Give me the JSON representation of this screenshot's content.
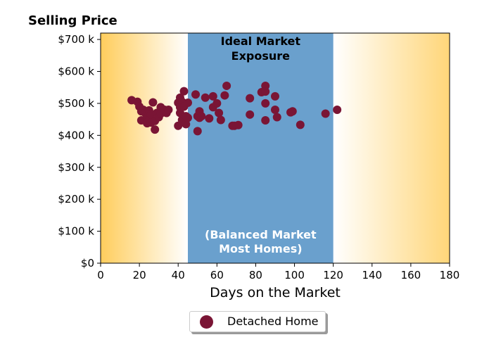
{
  "chart_data": {
    "type": "scatter",
    "title": "Selling Price",
    "xlabel": "Days on the Market",
    "ylabel": "",
    "xlim": [
      0,
      180
    ],
    "ylim": [
      0,
      720000
    ],
    "x_ticks": [
      0,
      20,
      40,
      60,
      80,
      100,
      120,
      140,
      160,
      180
    ],
    "y_ticks": [
      0,
      100000,
      200000,
      300000,
      400000,
      500000,
      600000,
      700000
    ],
    "y_tick_labels": [
      "$0",
      "$100 k",
      "$200 k",
      "$300 k",
      "$400 k",
      "$500 k",
      "$600 k",
      "$700 k"
    ],
    "grid": false,
    "legend_placement": "bottom-center",
    "highlight_band": {
      "x_range": [
        45,
        120
      ],
      "color": "#6aa0cd",
      "top_label_line1": "Ideal Market",
      "top_label_line2": "Exposure",
      "bottom_label_line1": "(Balanced Market",
      "bottom_label_line2": "Most Homes)"
    },
    "background_gradient_color": "#ffcd5c",
    "series": [
      {
        "name": "Detached Home",
        "color": "#7a1535",
        "x": [
          16,
          19,
          20,
          21,
          21,
          22,
          23,
          24,
          24,
          25,
          25,
          26,
          26,
          27,
          28,
          28,
          29,
          30,
          31,
          31,
          33,
          34,
          35,
          40,
          40,
          41,
          41,
          41,
          42,
          42,
          43,
          43,
          44,
          44,
          45,
          45,
          49,
          50,
          50,
          51,
          51,
          52,
          54,
          56,
          58,
          58,
          60,
          61,
          62,
          64,
          65,
          68,
          69,
          71,
          77,
          77,
          83,
          85,
          85,
          85,
          85,
          90,
          90,
          91,
          98,
          99,
          103,
          116,
          122
        ],
        "y": [
          510000,
          505000,
          490000,
          475000,
          447000,
          480000,
          470000,
          455000,
          438000,
          478000,
          448000,
          465000,
          440000,
          503000,
          445000,
          418000,
          470000,
          457000,
          488000,
          468000,
          480000,
          470000,
          480000,
          502000,
          430000,
          518000,
          488000,
          470000,
          505000,
          448000,
          538000,
          490000,
          460000,
          435000,
          502000,
          455000,
          528000,
          460000,
          413000,
          475000,
          455000,
          460000,
          518000,
          453000,
          522000,
          488000,
          500000,
          470000,
          448000,
          525000,
          555000,
          430000,
          430000,
          432000,
          516000,
          465000,
          535000,
          555000,
          537000,
          500000,
          447000,
          522000,
          480000,
          457000,
          472000,
          475000,
          433000,
          468000,
          480000
        ]
      }
    ]
  },
  "legend": {
    "label": "Detached Home"
  }
}
